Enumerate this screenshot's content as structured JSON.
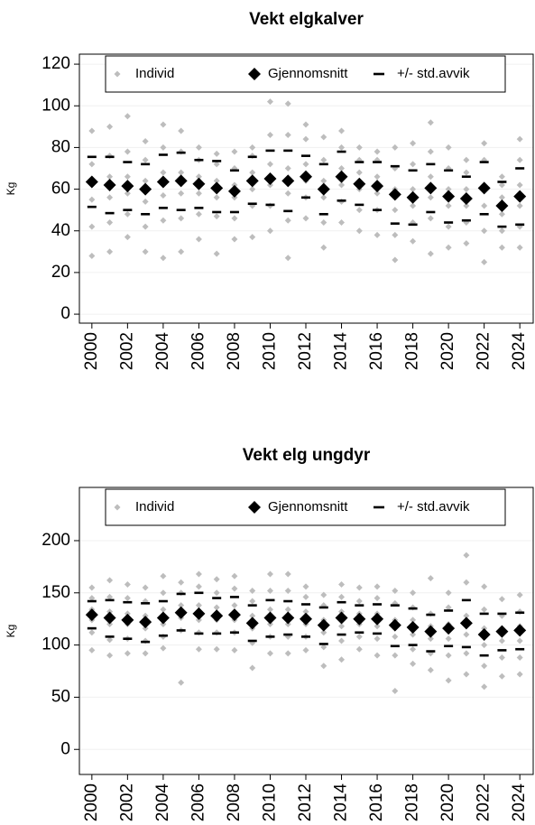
{
  "chart_data": [
    {
      "type": "scatter",
      "title": "Vekt elgkalver",
      "y_label": "Kg",
      "grid": true,
      "legend": "top",
      "x": [
        2000,
        2001,
        2002,
        2003,
        2004,
        2005,
        2006,
        2007,
        2008,
        2009,
        2010,
        2011,
        2012,
        2013,
        2014,
        2015,
        2016,
        2017,
        2018,
        2019,
        2020,
        2021,
        2022,
        2023,
        2024
      ],
      "xlim": [
        1999.3,
        2024.75
      ],
      "xticks": [
        2000,
        2002,
        2004,
        2006,
        2008,
        2010,
        2012,
        2014,
        2016,
        2018,
        2020,
        2022,
        2024
      ],
      "ylim": [
        -4.3,
        124.8
      ],
      "yticks": [
        0,
        20,
        40,
        60,
        80,
        100,
        120
      ],
      "series": [
        {
          "name": "Individ",
          "color": "#bdbdbd",
          "values": [
            [
              28,
              42,
              55,
              63,
              72,
              88
            ],
            [
              30,
              44,
              56,
              66,
              76,
              90
            ],
            [
              37,
              48,
              58,
              66,
              78,
              95
            ],
            [
              30,
              42,
              54,
              64,
              74,
              83
            ],
            [
              27,
              45,
              57,
              68,
              80,
              91
            ],
            [
              30,
              46,
              58,
              68,
              78,
              88
            ],
            [
              36,
              48,
              58,
              66,
              74,
              80
            ],
            [
              29,
              47,
              56,
              64,
              72,
              77
            ],
            [
              36,
              46,
              56,
              62,
              70,
              78
            ],
            [
              37,
              52,
              60,
              68,
              76,
              80
            ],
            [
              40,
              52,
              62,
              72,
              86,
              102
            ],
            [
              27,
              45,
              58,
              70,
              86,
              101
            ],
            [
              46,
              56,
              64,
              72,
              84,
              91
            ],
            [
              32,
              44,
              56,
              64,
              74,
              85
            ],
            [
              44,
              54,
              62,
              70,
              80,
              88
            ],
            [
              40,
              50,
              60,
              68,
              74,
              80
            ],
            [
              38,
              50,
              58,
              66,
              74,
              78
            ],
            [
              26,
              38,
              50,
              60,
              70,
              80
            ],
            [
              35,
              44,
              52,
              60,
              72,
              82
            ],
            [
              29,
              46,
              56,
              66,
              78,
              92
            ],
            [
              32,
              42,
              52,
              60,
              70,
              80
            ],
            [
              34,
              44,
              52,
              60,
              68,
              74
            ],
            [
              25,
              40,
              52,
              62,
              74,
              82
            ],
            [
              32,
              40,
              48,
              56,
              62,
              66
            ],
            [
              32,
              42,
              52,
              62,
              74,
              84
            ]
          ]
        },
        {
          "name": "Gjennomsnitt",
          "color": "#000000",
          "values": [
            63.5,
            62,
            61.5,
            60,
            63.5,
            64,
            62.5,
            60.5,
            59,
            64,
            65,
            64,
            66,
            60,
            66,
            62.5,
            61.5,
            57.5,
            56,
            60.5,
            56.5,
            55.5,
            60.5,
            52,
            56.5
          ]
        },
        {
          "name": "+/- std.avvik",
          "color": "#000000",
          "upper": [
            75.5,
            75.5,
            73,
            72,
            76.5,
            77.5,
            74,
            73.5,
            69,
            75.5,
            78.5,
            78.5,
            76,
            72,
            78,
            73,
            73,
            71,
            69,
            72,
            69,
            66,
            73,
            63.5,
            70
          ],
          "lower": [
            51.5,
            48.5,
            50,
            48,
            51,
            50,
            51,
            49,
            49,
            53,
            52.5,
            49.5,
            56,
            48,
            54.5,
            52.5,
            50,
            43.5,
            43,
            49,
            44,
            45,
            48,
            42,
            43
          ]
        }
      ]
    },
    {
      "type": "scatter",
      "title": "Vekt elg ungdyr",
      "y_label": "Kg",
      "grid": true,
      "legend": "top",
      "x": [
        2000,
        2001,
        2002,
        2003,
        2004,
        2005,
        2006,
        2007,
        2008,
        2009,
        2010,
        2011,
        2012,
        2013,
        2014,
        2015,
        2016,
        2017,
        2018,
        2019,
        2020,
        2021,
        2022,
        2023,
        2024
      ],
      "xlim": [
        1999.3,
        2024.75
      ],
      "xticks": [
        2000,
        2002,
        2004,
        2006,
        2008,
        2010,
        2012,
        2014,
        2016,
        2018,
        2020,
        2022,
        2024
      ],
      "ylim": [
        -24,
        251
      ],
      "yticks": [
        0,
        50,
        100,
        150,
        200
      ],
      "series": [
        {
          "name": "Individ",
          "color": "#bdbdbd",
          "values": [
            [
              95,
              112,
              124,
              134,
              145,
              155
            ],
            [
              90,
              105,
              120,
              132,
              146,
              162
            ],
            [
              92,
              106,
              120,
              130,
              145,
              158
            ],
            [
              92,
              104,
              116,
              128,
              142,
              155
            ],
            [
              97,
              108,
              120,
              134,
              150,
              166
            ],
            [
              64,
              114,
              126,
              138,
              150,
              160
            ],
            [
              96,
              112,
              124,
              138,
              156,
              168
            ],
            [
              96,
              112,
              124,
              136,
              150,
              163
            ],
            [
              95,
              112,
              124,
              138,
              154,
              166
            ],
            [
              78,
              102,
              116,
              128,
              142,
              152
            ],
            [
              92,
              108,
              120,
              134,
              152,
              168
            ],
            [
              92,
              108,
              120,
              134,
              152,
              168
            ],
            [
              95,
              108,
              120,
              132,
              146,
              156
            ],
            [
              80,
              98,
              112,
              124,
              138,
              148
            ],
            [
              86,
              104,
              118,
              132,
              146,
              158
            ],
            [
              96,
              108,
              120,
              130,
              142,
              155
            ],
            [
              90,
              106,
              118,
              130,
              145,
              156
            ],
            [
              56,
              90,
              108,
              124,
              140,
              152
            ],
            [
              82,
              96,
              110,
              124,
              136,
              150
            ],
            [
              76,
              92,
              106,
              118,
              130,
              164
            ],
            [
              66,
              90,
              106,
              120,
              136,
              150
            ],
            [
              72,
              92,
              110,
              128,
              160,
              186
            ],
            [
              60,
              80,
              100,
              116,
              134,
              156
            ],
            [
              70,
              88,
              104,
              116,
              128,
              144
            ],
            [
              72,
              88,
              104,
              118,
              132,
              148
            ]
          ]
        },
        {
          "name": "Gjennomsnitt",
          "color": "#000000",
          "values": [
            129,
            126,
            124,
            122,
            126,
            131,
            130,
            128,
            129,
            121,
            126,
            126,
            125,
            119,
            126,
            125,
            125,
            119,
            117,
            113,
            116,
            121,
            110,
            113,
            114
          ]
        },
        {
          "name": "+/- std.avvik",
          "color": "#000000",
          "upper": [
            142,
            143,
            141,
            140,
            142,
            149,
            150,
            145,
            146,
            138,
            143,
            142,
            139,
            136,
            141,
            138,
            139,
            138,
            135,
            129,
            133,
            143,
            130,
            130,
            131
          ],
          "lower": [
            116,
            108,
            106,
            103,
            109,
            114,
            111,
            111,
            112,
            104,
            108,
            110,
            108,
            101,
            110,
            112,
            111,
            99,
            100,
            94,
            99,
            98,
            90,
            95,
            96
          ]
        }
      ]
    }
  ]
}
